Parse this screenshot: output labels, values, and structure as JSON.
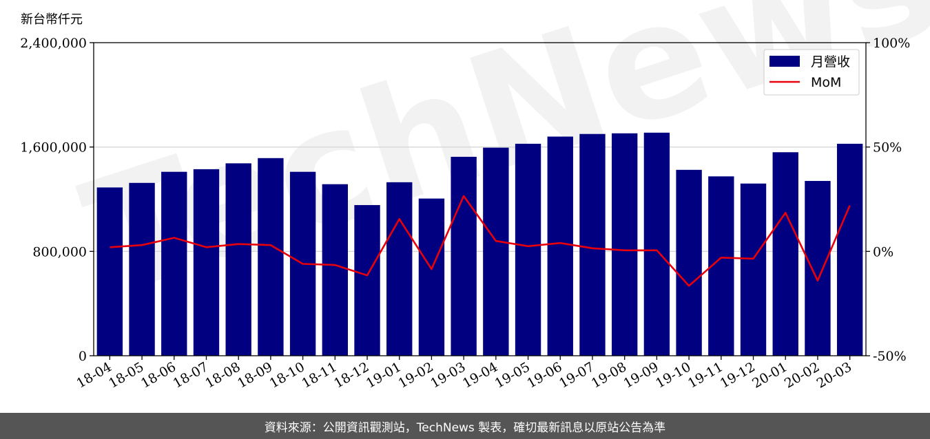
{
  "chart_data": {
    "type": "bar",
    "unit_label": "新台幣仟元",
    "categories": [
      "18-04",
      "18-05",
      "18-06",
      "18-07",
      "18-08",
      "18-09",
      "18-10",
      "18-11",
      "18-12",
      "19-01",
      "19-02",
      "19-03",
      "19-04",
      "19-05",
      "19-06",
      "19-07",
      "19-08",
      "19-09",
      "19-10",
      "19-11",
      "19-12",
      "20-01",
      "20-02",
      "20-03"
    ],
    "series": [
      {
        "name": "月營收",
        "type": "bar",
        "axis": "left",
        "color": "#000080",
        "values": [
          1290000,
          1325000,
          1410000,
          1430000,
          1475000,
          1515000,
          1410000,
          1315000,
          1155000,
          1330000,
          1205000,
          1525000,
          1595000,
          1625000,
          1680000,
          1700000,
          1705000,
          1710000,
          1425000,
          1375000,
          1320000,
          1560000,
          1340000,
          1625000
        ]
      },
      {
        "name": "MoM",
        "type": "line",
        "axis": "right",
        "color": "#e8000b",
        "values": [
          2.0,
          3.0,
          6.5,
          2.0,
          3.5,
          3.0,
          -6.0,
          -6.5,
          -11.5,
          15.5,
          -8.5,
          26.5,
          5.0,
          2.5,
          4.0,
          1.5,
          0.5,
          0.5,
          -16.5,
          -3.0,
          -3.5,
          18.5,
          -14.0,
          22.0
        ]
      }
    ],
    "ylim_left": [
      0,
      2400000
    ],
    "ylim_right": [
      -50,
      100
    ],
    "left_ticks": [
      "0",
      "800,000",
      "1,600,000",
      "2,400,000"
    ],
    "left_tick_values": [
      0,
      800000,
      1600000,
      2400000
    ],
    "right_ticks": [
      "-50%",
      "0%",
      "50%",
      "100%"
    ],
    "right_tick_values": [
      -50,
      0,
      50,
      100
    ],
    "grid": "horizontal",
    "legend": "top-right",
    "watermark": "TechNews"
  },
  "footer": {
    "source_text": "資料來源：公開資訊觀測站，TechNews 製表，確切最新訊息以原站公告為準"
  }
}
